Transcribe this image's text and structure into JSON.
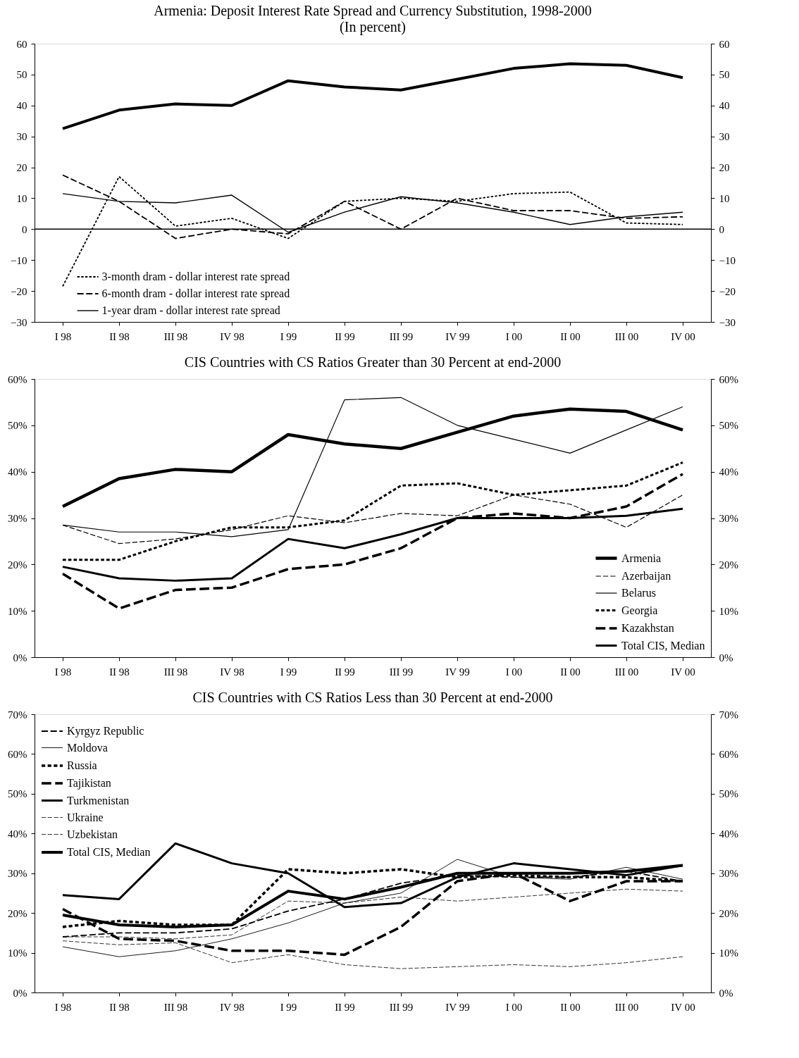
{
  "chart_data": [
    {
      "type": "line",
      "title": "Armenia: Deposit Interest Rate Spread and Currency Substitution, 1998-2000",
      "subtitle": "(In percent)",
      "categories": [
        "I 98",
        "II 98",
        "III 98",
        "IV 98",
        "I 99",
        "II 99",
        "III 99",
        "IV 99",
        "I 00",
        "II 00",
        "III 00",
        "IV 00"
      ],
      "ylim": [
        -30,
        60
      ],
      "yticks": [
        -30,
        -20,
        -10,
        0,
        10,
        20,
        30,
        40,
        50,
        60
      ],
      "y2lim": [
        -30,
        60
      ],
      "y2ticks": [
        -30,
        -20,
        -10,
        0,
        10,
        20,
        30,
        40,
        50,
        60
      ],
      "grid": false,
      "legend": "bottom",
      "marker": "none",
      "ref_lines": [
        {
          "axis": "y",
          "value": 0,
          "color": "#000000",
          "line_style": "solid"
        }
      ],
      "series": [
        {
          "color": "#000000",
          "line_style": "solid",
          "values": [
            32.5,
            38.5,
            40.5,
            40,
            48,
            46,
            45,
            48.5,
            52,
            53.5,
            53,
            49
          ]
        },
        {
          "name": "3-month dram - dollar interest rate spread",
          "color": "#000000",
          "line_style": "dotted",
          "values": [
            -18.5,
            17,
            1,
            3.5,
            -3,
            9,
            10,
            9,
            11.5,
            12,
            2,
            1.5
          ]
        },
        {
          "name": "6-month dram - dollar interest rate spread",
          "color": "#000000",
          "line_style": "dashed",
          "values": [
            17.5,
            9,
            -3,
            0,
            -1.5,
            9,
            0,
            10,
            6,
            6,
            3.5,
            4
          ]
        },
        {
          "name": "1-year dram - dollar interest rate spread",
          "color": "#000000",
          "line_style": "solid",
          "values": [
            11.5,
            9,
            8.5,
            11,
            -1,
            5.5,
            10.5,
            8.5,
            5.5,
            1.5,
            4,
            5.5
          ]
        }
      ]
    },
    {
      "type": "line",
      "title": "CIS Countries with CS Ratios Greater than 30 Percent at end-2000",
      "categories": [
        "I 98",
        "II 98",
        "III 98",
        "IV 98",
        "I 99",
        "II 99",
        "III 99",
        "IV 99",
        "I 00",
        "II 00",
        "III 00",
        "IV 00"
      ],
      "ylim": [
        0,
        60
      ],
      "yticks": [
        {
          "value": 0,
          "label": "0%"
        },
        {
          "value": 10,
          "label": "10%"
        },
        {
          "value": 20,
          "label": "20%"
        },
        {
          "value": 30,
          "label": "30%"
        },
        {
          "value": 40,
          "label": "40%"
        },
        {
          "value": 50,
          "label": "50%"
        },
        {
          "value": 60,
          "label": "60%"
        }
      ],
      "y2lim": [
        0,
        60
      ],
      "y2ticks": [
        {
          "value": 0,
          "label": "0%"
        },
        {
          "value": 10,
          "label": "10%"
        },
        {
          "value": 20,
          "label": "20%"
        },
        {
          "value": 30,
          "label": "30%"
        },
        {
          "value": 40,
          "label": "40%"
        },
        {
          "value": 50,
          "label": "50%"
        },
        {
          "value": 60,
          "label": "60%"
        }
      ],
      "grid": false,
      "legend": "bottom right",
      "marker": "none",
      "series": [
        {
          "name": "Armenia",
          "color": "#000000",
          "line_style": "solid",
          "values": [
            32.5,
            38.5,
            40.5,
            40,
            48,
            46,
            45,
            48.5,
            52,
            53.5,
            53,
            49
          ]
        },
        {
          "name": "Azerbaijan",
          "color": "#000000",
          "line_style": "dashed",
          "values": [
            28.5,
            24.5,
            25.5,
            27.5,
            30.5,
            29,
            31,
            30.5,
            35,
            33,
            28,
            35
          ]
        },
        {
          "name": "Belarus",
          "color": "#000000",
          "line_style": "solid",
          "values": [
            28.5,
            27,
            27,
            26,
            27.5,
            55.5,
            56,
            50,
            47,
            44,
            49,
            54
          ]
        },
        {
          "name": "Georgia",
          "color": "#000000",
          "line_style": "dotted",
          "values": [
            21,
            21,
            25,
            28,
            28,
            29.5,
            37,
            37.5,
            35,
            36,
            37,
            42
          ]
        },
        {
          "name": "Kazakhstan",
          "color": "#000000",
          "line_style": "dashed",
          "values": [
            18,
            10.5,
            14.5,
            15,
            19,
            20,
            23.5,
            30,
            31,
            30,
            32.5,
            39.5
          ]
        },
        {
          "name": "Total CIS, Median",
          "color": "#000000",
          "line_style": "solid",
          "values": [
            19.5,
            17,
            16.5,
            17,
            25.5,
            23.5,
            26.5,
            30,
            30,
            30,
            30.5,
            32
          ]
        }
      ]
    },
    {
      "type": "line",
      "title": "CIS Countries with CS Ratios Less than 30 Percent at end-2000",
      "categories": [
        "I 98",
        "II 98",
        "III 98",
        "IV 98",
        "I 99",
        "II 99",
        "III 99",
        "IV 99",
        "I 00",
        "II 00",
        "III 00",
        "IV 00"
      ],
      "ylim": [
        0,
        70
      ],
      "yticks": [
        {
          "value": 0,
          "label": "0%"
        },
        {
          "value": 10,
          "label": "10%"
        },
        {
          "value": 20,
          "label": "20%"
        },
        {
          "value": 30,
          "label": "30%"
        },
        {
          "value": 40,
          "label": "40%"
        },
        {
          "value": 50,
          "label": "50%"
        },
        {
          "value": 60,
          "label": "60%"
        },
        {
          "value": 70,
          "label": "70%"
        }
      ],
      "y2lim": [
        0,
        70
      ],
      "y2ticks": [
        {
          "value": 0,
          "label": "0%"
        },
        {
          "value": 10,
          "label": "10%"
        },
        {
          "value": 20,
          "label": "20%"
        },
        {
          "value": 30,
          "label": "30%"
        },
        {
          "value": 40,
          "label": "40%"
        },
        {
          "value": 50,
          "label": "50%"
        },
        {
          "value": 60,
          "label": "60%"
        },
        {
          "value": 70,
          "label": "70%"
        }
      ],
      "grid": false,
      "legend": "top left",
      "marker": "none",
      "series": [
        {
          "name": "Kyrgyz Republic",
          "color": "#000000",
          "line_style": "dashed",
          "values": [
            14,
            15,
            15,
            16,
            20.5,
            23.5,
            27.5,
            29.5,
            29,
            29,
            30.5,
            28
          ]
        },
        {
          "name": "Moldova",
          "color": "#000000",
          "line_style": "solid",
          "values": [
            11.5,
            9,
            10.5,
            13.5,
            17.5,
            22.5,
            25,
            33.5,
            29,
            28.5,
            31.5,
            28.5
          ]
        },
        {
          "name": "Russia",
          "color": "#000000",
          "line_style": "dotted",
          "values": [
            16.5,
            18,
            17,
            17,
            31,
            30,
            31,
            29,
            29.5,
            29,
            29,
            28
          ]
        },
        {
          "name": "Tajikistan",
          "color": "#000000",
          "line_style": "dashed",
          "values": [
            21,
            13.5,
            13,
            10.5,
            10.5,
            9.5,
            16.5,
            28,
            30,
            23,
            28,
            28
          ]
        },
        {
          "name": "Turkmenistan",
          "color": "#000000",
          "line_style": "solid",
          "values": [
            24.5,
            23.5,
            37.5,
            32.5,
            30,
            21.5,
            22.5,
            29,
            32.5,
            31,
            29.5,
            32
          ]
        },
        {
          "name": "Ukraine",
          "color": "#000000",
          "line_style": "dashed",
          "values": [
            13,
            12,
            12.5,
            7.5,
            9.5,
            7,
            6,
            6.5,
            7,
            6.5,
            7.5,
            9
          ]
        },
        {
          "name": "Uzbekistan",
          "color": "#000000",
          "line_style": "dashed",
          "values": [
            14,
            14,
            13.5,
            14.5,
            23,
            22.5,
            24,
            23,
            24,
            25,
            26,
            25.5
          ]
        },
        {
          "name": "Total CIS, Median",
          "color": "#000000",
          "line_style": "solid",
          "values": [
            19.5,
            17,
            16.5,
            17,
            25.5,
            23.5,
            26.5,
            30,
            30,
            30,
            30.5,
            32
          ]
        }
      ]
    }
  ]
}
